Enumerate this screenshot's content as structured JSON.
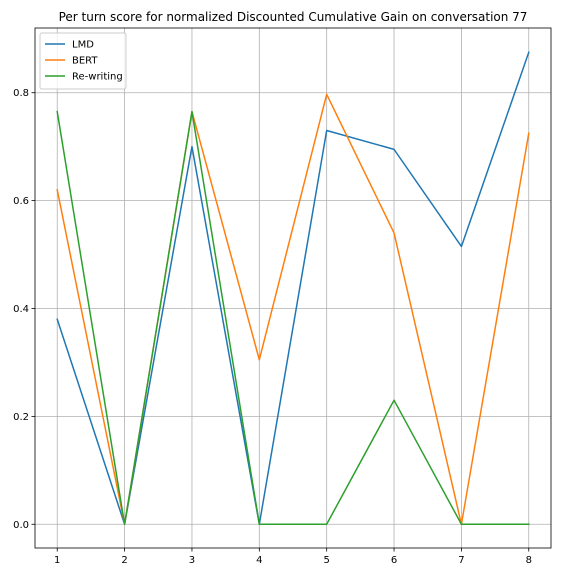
{
  "chart_data": {
    "type": "line",
    "title": "Per turn score for normalized Discounted Cumulative Gain on conversation 77",
    "xlabel": "",
    "ylabel": "",
    "x": [
      1,
      2,
      3,
      4,
      5,
      6,
      7,
      8
    ],
    "x_ticks": [
      "1",
      "2",
      "3",
      "4",
      "5",
      "6",
      "7",
      "8"
    ],
    "xlim": [
      0.67,
      8.33
    ],
    "y_ticks": [
      "0.0",
      "0.2",
      "0.4",
      "0.6",
      "0.8"
    ],
    "ylim": [
      -0.044,
      0.92
    ],
    "grid": true,
    "legend_position": "top-left",
    "series": [
      {
        "name": "LMD",
        "color": "#1f77b4",
        "values": [
          0.38,
          0.0,
          0.7,
          0.0,
          0.73,
          0.695,
          0.515,
          0.875
        ]
      },
      {
        "name": "BERT",
        "color": "#ff7f0e",
        "values": [
          0.62,
          0.0,
          0.765,
          0.305,
          0.797,
          0.54,
          0.0,
          0.725
        ]
      },
      {
        "name": "Re-writing",
        "color": "#2ca02c",
        "values": [
          0.765,
          0.0,
          0.765,
          0.0,
          0.0,
          0.23,
          0.0,
          0.0
        ]
      }
    ]
  }
}
